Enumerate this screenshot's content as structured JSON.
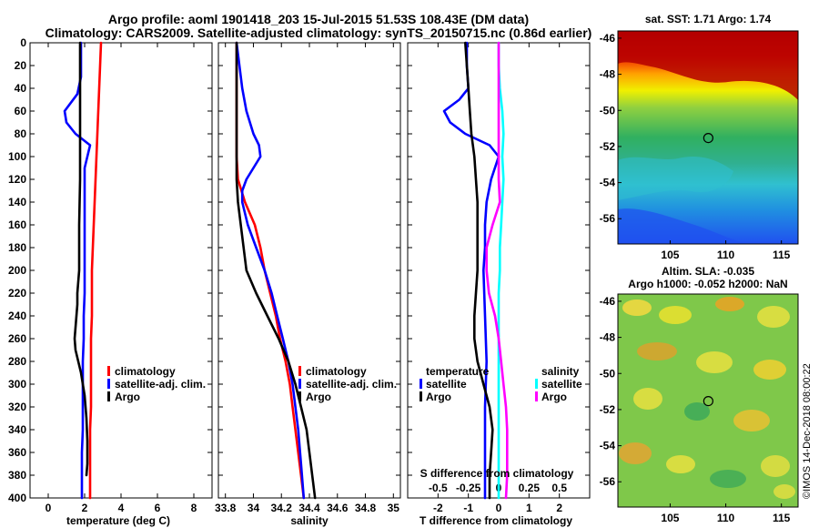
{
  "title": {
    "line1": "Argo profile: aoml 1901418_203 15-Jul-2015 51.53S 108.43E (DM data)",
    "line2": "Climatology: CARS2009. Satellite-adjusted climatology: synTS_20150715.nc (0.86d earlier)"
  },
  "credit": "©IMOS 14-Dec-2018 08:00:22",
  "colors": {
    "climatology": "#ff0000",
    "satellite": "#0000ff",
    "argo": "#000000",
    "salinity_satellite": "#00ffff",
    "salinity_climatology": "#ff00ff"
  },
  "chart_data": [
    {
      "type": "line",
      "id": "temperature",
      "xlabel": "temperature (deg C)",
      "ylabel": "",
      "xlim": [
        -1,
        9
      ],
      "ylim": [
        400,
        0
      ],
      "xticks": [
        "0",
        "2",
        "4",
        "6",
        "8"
      ],
      "xtick_values": [
        0,
        2,
        4,
        6,
        8
      ],
      "yticks": [
        "0",
        "20",
        "40",
        "60",
        "80",
        "100",
        "120",
        "140",
        "160",
        "180",
        "200",
        "220",
        "240",
        "260",
        "280",
        "300",
        "320",
        "340",
        "360",
        "380",
        "400"
      ],
      "ytick_values": [
        0,
        20,
        40,
        60,
        80,
        100,
        120,
        140,
        160,
        180,
        200,
        220,
        240,
        260,
        280,
        300,
        320,
        340,
        360,
        380,
        400
      ],
      "legend": [
        "climatology",
        "satellite-adj. clim.",
        "Argo"
      ],
      "legend_position": "lower-right",
      "series": [
        {
          "name": "climatology",
          "color": "#ff0000",
          "x": [
            2.9,
            2.85,
            2.8,
            2.75,
            2.7,
            2.65,
            2.6,
            2.55,
            2.5,
            2.45,
            2.4,
            2.4,
            2.4,
            2.35,
            2.35,
            2.35,
            2.35,
            2.3,
            2.3,
            2.3,
            2.3
          ],
          "y": [
            0,
            20,
            40,
            60,
            80,
            100,
            120,
            140,
            160,
            180,
            200,
            220,
            240,
            260,
            280,
            300,
            320,
            340,
            360,
            380,
            400
          ]
        },
        {
          "name": "satellite-adj. clim.",
          "color": "#0000ff",
          "x": [
            1.8,
            1.8,
            1.8,
            1.6,
            0.9,
            1.0,
            1.5,
            2.3,
            2.0,
            2.0,
            2.0,
            2.0,
            1.95,
            1.95,
            1.9,
            1.9,
            1.9,
            1.9,
            1.85,
            1.85,
            1.85,
            1.85
          ],
          "y": [
            0,
            20,
            30,
            45,
            60,
            70,
            80,
            90,
            110,
            140,
            180,
            220,
            240,
            260,
            280,
            300,
            320,
            340,
            360,
            380,
            390,
            400
          ]
        },
        {
          "name": "Argo",
          "color": "#000000",
          "x": [
            1.75,
            1.75,
            1.75,
            1.75,
            1.7,
            1.7,
            1.7,
            1.65,
            1.6,
            1.6,
            1.55,
            1.5,
            1.45,
            1.5,
            1.8,
            2.0,
            2.1,
            2.15,
            2.15,
            2.1
          ],
          "y": [
            0,
            40,
            80,
            120,
            160,
            180,
            200,
            210,
            220,
            230,
            240,
            250,
            260,
            270,
            290,
            310,
            330,
            350,
            370,
            380
          ]
        }
      ]
    },
    {
      "type": "line",
      "id": "salinity",
      "xlabel": "salinity",
      "ylabel": "",
      "xlim": [
        33.75,
        35.05
      ],
      "ylim": [
        400,
        0
      ],
      "xticks": [
        "33.8",
        "34",
        "34.2",
        "34.4",
        "34.6",
        "34.8",
        "35"
      ],
      "xtick_values": [
        33.8,
        34.0,
        34.2,
        34.4,
        34.6,
        34.8,
        35.0
      ],
      "legend": [
        "climatology",
        "satellite-adj. clim.",
        "Argo"
      ],
      "legend_position": "lower-right",
      "series": [
        {
          "name": "climatology",
          "color": "#ff0000",
          "x": [
            33.88,
            33.88,
            33.88,
            33.88,
            33.88,
            33.88,
            33.89,
            33.94,
            34.01,
            34.05,
            34.08,
            34.12,
            34.16,
            34.19,
            34.23,
            34.26,
            34.28,
            34.3,
            34.32,
            34.34,
            34.36
          ],
          "y": [
            0,
            20,
            40,
            60,
            80,
            100,
            120,
            140,
            160,
            180,
            200,
            220,
            240,
            260,
            280,
            300,
            320,
            340,
            360,
            380,
            400
          ]
        },
        {
          "name": "satellite-adj. clim.",
          "color": "#0000ff",
          "x": [
            33.88,
            33.9,
            33.92,
            33.95,
            34.0,
            34.04,
            34.05,
            34.0,
            33.95,
            33.92,
            33.92,
            33.96,
            34.02,
            34.08,
            34.13,
            34.17,
            34.21,
            34.25,
            34.28,
            34.3,
            34.32,
            34.34,
            34.36
          ],
          "y": [
            0,
            20,
            40,
            60,
            80,
            90,
            100,
            110,
            120,
            130,
            140,
            160,
            180,
            200,
            220,
            240,
            260,
            280,
            300,
            320,
            340,
            370,
            400
          ]
        },
        {
          "name": "Argo",
          "color": "#000000",
          "x": [
            33.88,
            33.88,
            33.88,
            33.88,
            33.88,
            33.88,
            33.88,
            33.89,
            33.91,
            33.93,
            33.95,
            34.02,
            34.1,
            34.18,
            34.25,
            34.3,
            34.34,
            34.38,
            34.4,
            34.42,
            34.44
          ],
          "y": [
            0,
            20,
            40,
            60,
            80,
            100,
            120,
            140,
            160,
            180,
            200,
            220,
            240,
            260,
            280,
            300,
            320,
            340,
            360,
            380,
            400
          ]
        }
      ]
    },
    {
      "type": "line",
      "id": "difference",
      "xlabel": "T difference from climatology",
      "xlabel_top": "S difference from climatology",
      "ylabel": "",
      "xlim": [
        -3,
        3
      ],
      "ylim": [
        400,
        0
      ],
      "xticks": [
        "-2",
        "-1",
        "0",
        "1",
        "2"
      ],
      "xtick_values": [
        -2,
        -1,
        0,
        1,
        2
      ],
      "xticks_top": [
        "-0.5",
        "-0.25",
        "0",
        "0.25",
        "0.5"
      ],
      "xtick_values_top": [
        -0.5,
        -0.25,
        0,
        0.25,
        0.5
      ],
      "legend_temperature": {
        "title": "temperature",
        "items": [
          "satellite",
          "Argo"
        ]
      },
      "legend_salinity": {
        "title": "salinity",
        "items": [
          "satellite",
          "Argo"
        ]
      },
      "series": [
        {
          "name": "temperature satellite",
          "color": "#0000ff",
          "x": [
            -1.05,
            -1.05,
            -1.0,
            -1.3,
            -1.8,
            -1.6,
            -1.1,
            -0.3,
            0.0,
            -0.25,
            -0.4,
            -0.45,
            -0.45,
            -0.5,
            -0.45,
            -0.4,
            -0.45,
            -0.45,
            -0.45,
            -0.45,
            -0.45,
            -0.45
          ],
          "y": [
            0,
            20,
            40,
            50,
            60,
            70,
            80,
            90,
            100,
            120,
            140,
            160,
            180,
            200,
            240,
            280,
            320,
            340,
            360,
            380,
            390,
            400
          ]
        },
        {
          "name": "temperature Argo",
          "color": "#000000",
          "x": [
            -1.1,
            -1.05,
            -1.0,
            -0.95,
            -0.9,
            -0.8,
            -0.75,
            -0.7,
            -0.7,
            -0.7,
            -0.7,
            -0.75,
            -0.8,
            -0.8,
            -0.7,
            -0.5,
            -0.3,
            -0.2,
            -0.25,
            -0.3,
            -0.3
          ],
          "y": [
            0,
            20,
            40,
            60,
            80,
            100,
            120,
            140,
            160,
            180,
            200,
            220,
            240,
            260,
            280,
            300,
            320,
            340,
            360,
            380,
            400
          ]
        },
        {
          "name": "salinity satellite",
          "color": "#00ffff",
          "x": [
            0.0,
            0.0,
            0.01,
            0.03,
            0.04,
            0.03,
            0.04,
            0.03,
            0.02,
            0.01,
            0.01,
            0.0,
            0.0,
            0.0,
            0.0,
            0.0,
            0.0,
            0.0,
            0.0,
            0.0,
            0.0
          ],
          "y": [
            0,
            20,
            40,
            60,
            80,
            100,
            120,
            140,
            160,
            180,
            200,
            220,
            240,
            260,
            280,
            300,
            320,
            340,
            360,
            380,
            400
          ]
        },
        {
          "name": "salinity Argo",
          "color": "#ff00ff",
          "x": [
            0.0,
            0.0,
            0.0,
            0.0,
            0.0,
            0.0,
            0.0,
            0.01,
            -0.05,
            -0.1,
            -0.1,
            -0.08,
            -0.03,
            0.0,
            0.02,
            0.04,
            0.06,
            0.07,
            0.07,
            0.07,
            0.06
          ],
          "y": [
            0,
            20,
            40,
            60,
            80,
            100,
            120,
            140,
            160,
            180,
            200,
            220,
            240,
            260,
            280,
            300,
            320,
            340,
            360,
            380,
            400
          ]
        }
      ]
    },
    {
      "type": "heatmap",
      "id": "sst-map",
      "title": "sat. SST: 1.71 Argo: 1.74",
      "xticks": [
        "105",
        "110",
        "115"
      ],
      "xtick_values": [
        105,
        110,
        115
      ],
      "yticks": [
        "-46",
        "-48",
        "-50",
        "-52",
        "-54",
        "-56"
      ],
      "ytick_values": [
        -46,
        -48,
        -50,
        -52,
        -54,
        -56
      ],
      "xlim": [
        100.3,
        116.5
      ],
      "ylim": [
        -57.4,
        -45.6
      ],
      "marker": {
        "lon": 108.43,
        "lat": -51.53
      }
    },
    {
      "type": "heatmap",
      "id": "sla-map",
      "title": "Altim. SLA: -0.035",
      "subtitle": "Argo h1000: -0.052 h2000: NaN",
      "xticks": [
        "105",
        "110",
        "115"
      ],
      "xtick_values": [
        105,
        110,
        115
      ],
      "yticks": [
        "-46",
        "-48",
        "-50",
        "-52",
        "-54",
        "-56"
      ],
      "ytick_values": [
        -46,
        -48,
        -50,
        -52,
        -54,
        -56
      ],
      "xlim": [
        100.3,
        116.5
      ],
      "ylim": [
        -57.4,
        -45.6
      ],
      "marker": {
        "lon": 108.43,
        "lat": -51.53
      }
    }
  ]
}
